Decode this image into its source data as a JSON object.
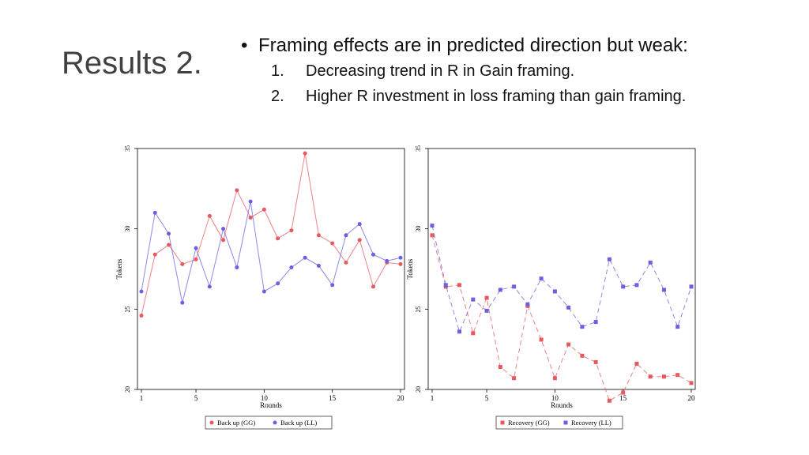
{
  "slide": {
    "title": "Results 2.",
    "bullet": "Framing effects are in predicted direction but weak:",
    "subpoints": [
      {
        "num": "1.",
        "text": "Decreasing trend in R in Gain framing."
      },
      {
        "num": "2.",
        "text": "Higher R investment in loss framing than gain framing."
      }
    ]
  },
  "chart_data": [
    {
      "type": "line",
      "xlabel": "Rounds",
      "ylabel": "Tokens",
      "xlim": [
        1,
        20
      ],
      "ylim": [
        20,
        35
      ],
      "xticks": [
        1,
        5,
        10,
        15,
        20
      ],
      "yticks": [
        20,
        25,
        30,
        35
      ],
      "legend_position": "bottom",
      "x": [
        1,
        2,
        3,
        4,
        5,
        6,
        7,
        8,
        9,
        10,
        11,
        12,
        13,
        14,
        15,
        16,
        17,
        18,
        19,
        20
      ],
      "series": [
        {
          "name": "Back up (GG)",
          "color": "#e8585f",
          "marker": "circle",
          "dash": false,
          "values": [
            24.6,
            28.4,
            29.0,
            27.8,
            28.1,
            30.8,
            29.3,
            32.4,
            30.7,
            31.2,
            29.4,
            29.9,
            34.7,
            29.6,
            29.1,
            27.9,
            29.3,
            26.4,
            27.9,
            27.8
          ]
        },
        {
          "name": "Back up (LL)",
          "color": "#6a60e0",
          "marker": "circle",
          "dash": false,
          "values": [
            26.1,
            31.0,
            29.7,
            25.4,
            28.8,
            26.4,
            30.0,
            27.6,
            31.7,
            26.1,
            26.6,
            27.6,
            28.2,
            27.7,
            26.5,
            29.6,
            30.3,
            28.4,
            28.0,
            28.2
          ]
        }
      ]
    },
    {
      "type": "line",
      "xlabel": "Rounds",
      "ylabel": "Tokens",
      "xlim": [
        1,
        20
      ],
      "ylim": [
        20,
        35
      ],
      "xticks": [
        1,
        5,
        10,
        15,
        20
      ],
      "yticks": [
        20,
        25,
        30,
        35
      ],
      "legend_position": "bottom",
      "x": [
        1,
        2,
        3,
        4,
        5,
        6,
        7,
        8,
        9,
        10,
        11,
        12,
        13,
        14,
        15,
        16,
        17,
        18,
        19,
        20
      ],
      "series": [
        {
          "name": "Recovery (GG)",
          "color": "#e8585f",
          "marker": "square",
          "dash": true,
          "values": [
            29.6,
            26.4,
            26.5,
            23.5,
            25.7,
            21.4,
            20.7,
            25.2,
            23.1,
            20.7,
            22.8,
            22.1,
            21.7,
            19.3,
            19.8,
            21.6,
            20.8,
            20.8,
            20.9,
            20.4
          ]
        },
        {
          "name": "Recovery (LL)",
          "color": "#6a60e0",
          "marker": "square",
          "dash": true,
          "values": [
            30.2,
            26.5,
            23.6,
            25.6,
            24.9,
            26.2,
            26.4,
            25.3,
            26.9,
            26.1,
            25.1,
            23.9,
            24.2,
            28.1,
            26.4,
            26.5,
            27.9,
            26.2,
            23.9,
            26.4
          ]
        }
      ]
    }
  ]
}
